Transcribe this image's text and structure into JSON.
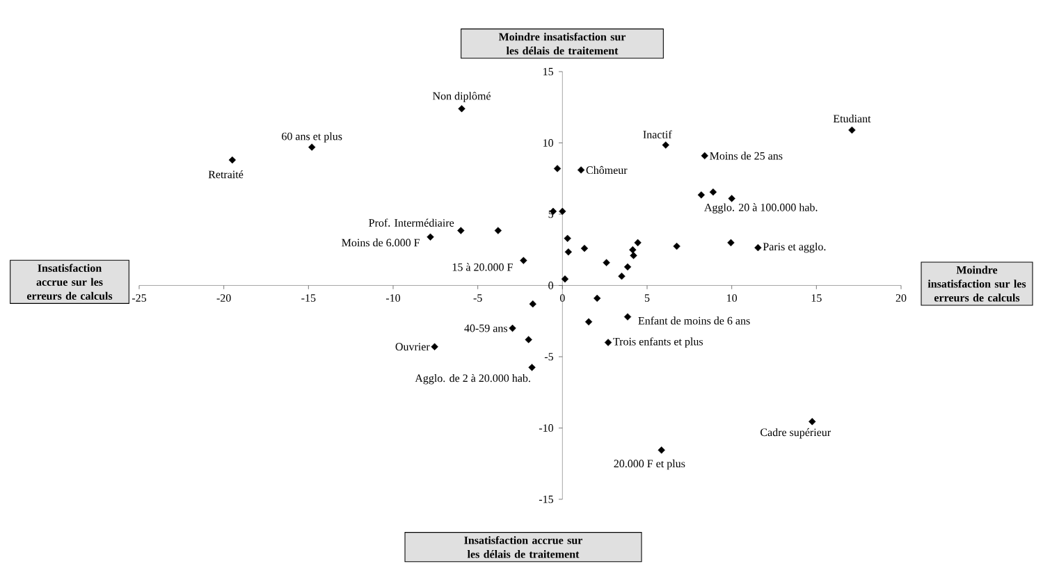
{
  "chart_data": {
    "type": "scatter",
    "x": [
      -19.5,
      -14.8,
      -5.95,
      -6.0,
      -7.8,
      -3.8,
      -2.3,
      -0.3,
      1.1,
      6.1,
      8.4,
      17.1,
      8.2,
      8.9,
      10.0,
      -0.55,
      0,
      0.3,
      0.35,
      1.3,
      2.6,
      3.5,
      3.85,
      4.2,
      4.15,
      4.45,
      6.75,
      9.95,
      11.55,
      0.15,
      2.05,
      1.55,
      3.85,
      2.7,
      5.85,
      14.75,
      -1.75,
      -2.95,
      -2.0,
      -7.55,
      -1.8
    ],
    "values": [
      8.8,
      9.7,
      12.4,
      3.85,
      3.4,
      3.85,
      1.75,
      8.2,
      8.1,
      9.85,
      9.1,
      10.9,
      6.35,
      6.55,
      6.1,
      5.2,
      5.2,
      3.3,
      2.35,
      2.6,
      1.6,
      0.65,
      1.3,
      2.1,
      2.5,
      3.0,
      2.75,
      3.0,
      2.65,
      0.45,
      -0.9,
      -2.55,
      -2.2,
      -4.0,
      -11.55,
      -9.55,
      -1.3,
      -3.0,
      -3.8,
      -4.3,
      -5.75
    ],
    "color": "#000000",
    "marker": "diamond",
    "xlim": [
      -25,
      20
    ],
    "ylim": [
      -15,
      15
    ],
    "xticks": [
      -25,
      -20,
      -15,
      -10,
      -5,
      0,
      5,
      10,
      15,
      20
    ],
    "yticks": [
      -15,
      -10,
      -5,
      0,
      5,
      10,
      15
    ],
    "grid": false,
    "annotations": [
      "Moindre insatisfaction sur les délais de traitement",
      "Insatisfaction accrue sur les erreurs de calculs",
      "Moindre insatisfaction sur les erreurs de calculs",
      "Insatisfaction accrue sur les délais de traitement",
      {
        "text": "Retraité",
        "x": -19.5,
        "y": 8.8
      },
      {
        "text": "60 ans et plus",
        "x": -14.8,
        "y": 9.7
      },
      {
        "text": "Non diplômé",
        "x": -5.95,
        "y": 12.4
      },
      {
        "text": "Prof. Intermédiaire",
        "x": -6.0,
        "y": 3.85
      },
      {
        "text": "Moins de 6.000 F",
        "x": -7.8,
        "y": 3.4
      },
      {
        "text": "15 à 20.000 F",
        "x": -2.3,
        "y": 1.75
      },
      {
        "text": "Chômeur",
        "x": 1.1,
        "y": 8.1
      },
      {
        "text": "Inactif",
        "x": 6.1,
        "y": 9.85
      },
      {
        "text": "Moins de 25 ans",
        "x": 8.4,
        "y": 9.1
      },
      {
        "text": "Etudiant",
        "x": 17.1,
        "y": 10.9
      },
      {
        "text": "Agglo. 20 à 100.000 hab.",
        "x": 10.0,
        "y": 6.1
      },
      {
        "text": "Paris et agglo.",
        "x": 11.55,
        "y": 2.65
      },
      {
        "text": "Enfant de moins de 6 ans",
        "x": 3.85,
        "y": -2.2
      },
      {
        "text": "Trois enfants et plus",
        "x": 2.7,
        "y": -4.0
      },
      {
        "text": "20.000 F et plus",
        "x": 5.85,
        "y": -11.55
      },
      {
        "text": "Cadre supérieur",
        "x": 14.75,
        "y": -9.55
      },
      {
        "text": "40-59 ans",
        "x": -2.95,
        "y": -3.0
      },
      {
        "text": "Ouvrier",
        "x": -7.55,
        "y": -4.3
      },
      {
        "text": "Agglo. de 2 à 20.000 hab.",
        "x": -1.8,
        "y": -5.75
      }
    ]
  }
}
